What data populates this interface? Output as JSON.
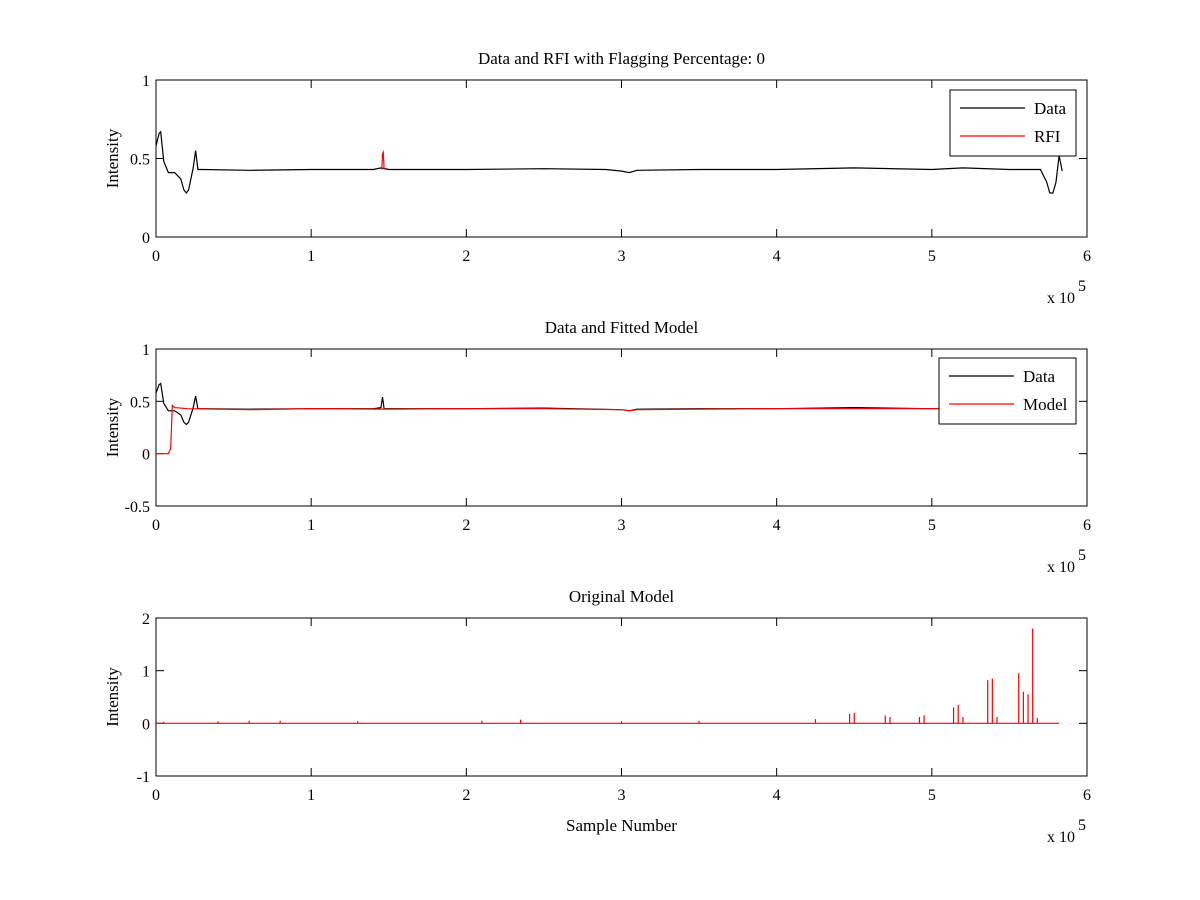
{
  "colors": {
    "data": "#000000",
    "rfi": "#ff0000",
    "model": "#ff0000",
    "axes": "#000000",
    "background": "#ffffff"
  },
  "chart_data": [
    {
      "type": "line",
      "title": "Data and RFI with Flagging Percentage: 0",
      "xlabel": "",
      "ylabel": "Intensity",
      "xlim": [
        0,
        600000
      ],
      "ylim": [
        0,
        1
      ],
      "xticks": [
        0,
        1,
        2,
        3,
        4,
        5,
        6
      ],
      "yticks": [
        "0",
        "0.5",
        "1"
      ],
      "ytick_values": [
        0,
        0.5,
        1
      ],
      "x_multiplier": "x 10",
      "x_multiplier_exp": "5",
      "legend": {
        "position": "top-right",
        "entries": [
          "Data",
          "RFI"
        ]
      },
      "series": [
        {
          "name": "Data",
          "color": "#000000",
          "x": [
            0,
            2000,
            3000,
            5000,
            8000,
            12000,
            16000,
            18000,
            19500,
            21000,
            24000,
            25500,
            27000,
            30000,
            60000,
            100000,
            140000,
            145000,
            150000,
            200000,
            250000,
            290000,
            300000,
            305000,
            310000,
            350000,
            400000,
            450000,
            500000,
            520000,
            550000,
            570000,
            574000,
            576000,
            578000,
            580000,
            582000,
            584000
          ],
          "y": [
            0.58,
            0.66,
            0.67,
            0.48,
            0.41,
            0.41,
            0.37,
            0.3,
            0.28,
            0.3,
            0.44,
            0.55,
            0.43,
            0.43,
            0.425,
            0.43,
            0.43,
            0.44,
            0.43,
            0.43,
            0.435,
            0.43,
            0.42,
            0.41,
            0.425,
            0.43,
            0.43,
            0.44,
            0.43,
            0.44,
            0.43,
            0.43,
            0.35,
            0.28,
            0.28,
            0.35,
            0.52,
            0.42
          ]
        },
        {
          "name": "RFI",
          "color": "#ff0000",
          "x": [
            145500,
            146000,
            146500,
            147000
          ],
          "y": [
            0.43,
            0.53,
            0.54,
            0.43
          ]
        }
      ]
    },
    {
      "type": "line",
      "title": "Data and Fitted Model",
      "xlabel": "",
      "ylabel": "Intensity",
      "xlim": [
        0,
        600000
      ],
      "ylim": [
        -0.5,
        1
      ],
      "xticks": [
        0,
        1,
        2,
        3,
        4,
        5,
        6
      ],
      "yticks": [
        "-0.5",
        "0",
        "0.5",
        "1"
      ],
      "ytick_values": [
        -0.5,
        0,
        0.5,
        1
      ],
      "x_multiplier": "x 10",
      "x_multiplier_exp": "5",
      "legend": {
        "position": "top-right",
        "entries": [
          "Data",
          "Model"
        ]
      },
      "series": [
        {
          "name": "Data",
          "color": "#000000",
          "x": [
            0,
            2000,
            3000,
            5000,
            8000,
            12000,
            16000,
            18000,
            19500,
            21000,
            24000,
            25500,
            27000,
            30000,
            60000,
            100000,
            140000,
            145000,
            146000,
            147000,
            150000,
            200000,
            250000,
            300000,
            305000,
            310000,
            350000,
            400000,
            450000,
            500000,
            520000,
            550000,
            570000,
            576000,
            580000,
            582000,
            584000
          ],
          "y": [
            0.58,
            0.66,
            0.67,
            0.48,
            0.41,
            0.41,
            0.37,
            0.3,
            0.28,
            0.3,
            0.44,
            0.55,
            0.43,
            0.43,
            0.425,
            0.43,
            0.43,
            0.44,
            0.54,
            0.43,
            0.43,
            0.43,
            0.435,
            0.42,
            0.41,
            0.425,
            0.43,
            0.43,
            0.44,
            0.43,
            0.44,
            0.43,
            0.43,
            0.3,
            0.35,
            0.52,
            0.42
          ]
        },
        {
          "name": "Model",
          "color": "#ff0000",
          "x": [
            0,
            8000,
            9500,
            10500,
            12000,
            20000,
            60000,
            100000,
            150000,
            200000,
            250000,
            300000,
            305000,
            310000,
            350000,
            400000,
            450000,
            500000,
            550000,
            565000
          ],
          "y": [
            0,
            0,
            0.05,
            0.46,
            0.44,
            0.43,
            0.42,
            0.43,
            0.425,
            0.43,
            0.43,
            0.42,
            0.41,
            0.42,
            0.425,
            0.43,
            0.43,
            0.43,
            0.43,
            0.43
          ]
        }
      ]
    },
    {
      "type": "line",
      "title": "Original Model",
      "xlabel": "Sample Number",
      "ylabel": "Intensity",
      "xlim": [
        0,
        600000
      ],
      "ylim": [
        -1,
        2
      ],
      "xticks": [
        0,
        1,
        2,
        3,
        4,
        5,
        6
      ],
      "yticks": [
        "-1",
        "0",
        "1",
        "2"
      ],
      "ytick_values": [
        -1,
        0,
        1,
        2
      ],
      "x_multiplier": "x 10",
      "x_multiplier_exp": "5",
      "series": [
        {
          "name": "",
          "color": "#ff0000",
          "x": [
            0,
            582000
          ],
          "y": [
            0,
            0
          ]
        }
      ],
      "spikes": [
        {
          "x": 5000,
          "y": 0.03
        },
        {
          "x": 40000,
          "y": 0.04
        },
        {
          "x": 60000,
          "y": 0.05
        },
        {
          "x": 80000,
          "y": 0.05
        },
        {
          "x": 130000,
          "y": 0.04
        },
        {
          "x": 210000,
          "y": 0.05
        },
        {
          "x": 235000,
          "y": 0.07
        },
        {
          "x": 300000,
          "y": 0.04
        },
        {
          "x": 350000,
          "y": 0.05
        },
        {
          "x": 425000,
          "y": 0.08
        },
        {
          "x": 447000,
          "y": 0.18
        },
        {
          "x": 450000,
          "y": 0.2
        },
        {
          "x": 470000,
          "y": 0.15
        },
        {
          "x": 473000,
          "y": 0.12
        },
        {
          "x": 492000,
          "y": 0.12
        },
        {
          "x": 495000,
          "y": 0.15
        },
        {
          "x": 514000,
          "y": 0.3
        },
        {
          "x": 517000,
          "y": 0.35
        },
        {
          "x": 520000,
          "y": 0.12
        },
        {
          "x": 536000,
          "y": 0.82
        },
        {
          "x": 539000,
          "y": 0.85
        },
        {
          "x": 542000,
          "y": 0.12
        },
        {
          "x": 556000,
          "y": 0.95
        },
        {
          "x": 559000,
          "y": 0.6
        },
        {
          "x": 562000,
          "y": 0.55
        },
        {
          "x": 565000,
          "y": 1.8
        },
        {
          "x": 568000,
          "y": 0.1
        }
      ]
    }
  ]
}
